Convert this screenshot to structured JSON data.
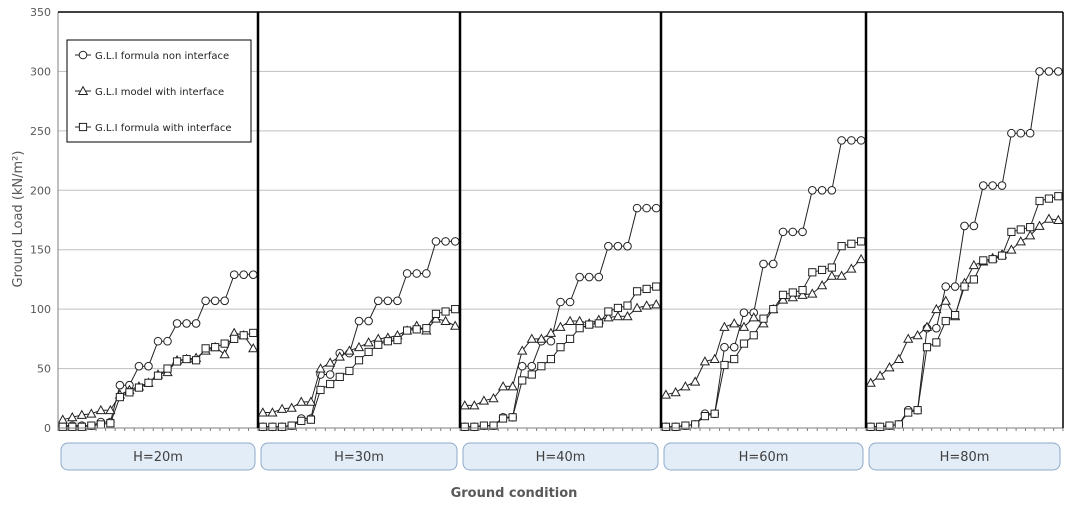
{
  "chart_data": {
    "type": "line",
    "title": "",
    "xlabel": "Ground condition",
    "ylabel": "Ground Load (kN/m²)",
    "ylim": [
      0,
      350
    ],
    "yticks": [
      0,
      50,
      100,
      150,
      200,
      250,
      300,
      350
    ],
    "grid": true,
    "legend": "top-left",
    "panels": [
      "H=20m",
      "H=30m",
      "H=40m",
      "H=60m",
      "H=80m"
    ],
    "series": [
      {
        "name": "G.L.I formula non interface",
        "marker": "circle",
        "values": [
          [
            2,
            2,
            2,
            2,
            5,
            5,
            36,
            36,
            52,
            52,
            73,
            73,
            88,
            88,
            88,
            107,
            107,
            107,
            129,
            129,
            129
          ],
          [
            1,
            1,
            1,
            2,
            8,
            8,
            45,
            45,
            63,
            63,
            90,
            90,
            107,
            107,
            107,
            130,
            130,
            130,
            157,
            157,
            157
          ],
          [
            1,
            1,
            2,
            2,
            9,
            9,
            52,
            52,
            73,
            73,
            106,
            106,
            127,
            127,
            127,
            153,
            153,
            153,
            185,
            185,
            185
          ],
          [
            1,
            1,
            2,
            3,
            12,
            12,
            68,
            68,
            97,
            97,
            138,
            138,
            165,
            165,
            165,
            200,
            200,
            200,
            242,
            242,
            242
          ],
          [
            1,
            1,
            2,
            3,
            15,
            15,
            84,
            84,
            119,
            119,
            170,
            170,
            204,
            204,
            204,
            248,
            248,
            248,
            300,
            300,
            300
          ]
        ]
      },
      {
        "name": "G.L.I model with interface",
        "marker": "triangle",
        "values": [
          [
            7,
            9,
            11,
            12,
            15,
            15,
            28,
            32,
            35,
            38,
            45,
            47,
            57,
            58,
            59,
            65,
            68,
            62,
            80,
            78,
            67
          ],
          [
            13,
            13,
            16,
            17,
            22,
            22,
            50,
            55,
            60,
            65,
            68,
            72,
            75,
            76,
            78,
            82,
            86,
            82,
            92,
            90,
            86
          ],
          [
            19,
            19,
            23,
            25,
            35,
            35,
            65,
            75,
            75,
            80,
            85,
            90,
            90,
            88,
            91,
            93,
            94,
            94,
            101,
            103,
            104
          ],
          [
            28,
            30,
            35,
            39,
            56,
            58,
            85,
            88,
            85,
            93,
            88,
            100,
            108,
            110,
            112,
            113,
            120,
            128,
            128,
            134,
            142
          ],
          [
            38,
            44,
            51,
            58,
            75,
            78,
            85,
            100,
            107,
            94,
            122,
            137,
            140,
            143,
            146,
            150,
            157,
            162,
            170,
            176,
            175
          ]
        ]
      },
      {
        "name": "G.L.I formula with interface",
        "marker": "square",
        "values": [
          [
            1,
            1,
            1,
            2,
            3,
            4,
            26,
            30,
            34,
            38,
            44,
            50,
            56,
            58,
            57,
            67,
            68,
            71,
            75,
            78,
            80
          ],
          [
            1,
            1,
            1,
            2,
            6,
            7,
            32,
            37,
            43,
            48,
            57,
            64,
            70,
            73,
            74,
            82,
            83,
            84,
            96,
            98,
            100
          ],
          [
            1,
            1,
            2,
            2,
            8,
            9,
            40,
            45,
            52,
            58,
            68,
            75,
            84,
            87,
            88,
            98,
            101,
            103,
            115,
            117,
            119
          ],
          [
            1,
            1,
            2,
            3,
            10,
            12,
            53,
            58,
            71,
            78,
            92,
            100,
            112,
            114,
            116,
            131,
            133,
            135,
            153,
            155,
            157
          ],
          [
            1,
            1,
            2,
            3,
            13,
            15,
            68,
            72,
            90,
            95,
            119,
            125,
            141,
            142,
            145,
            165,
            167,
            169,
            191,
            193,
            195
          ]
        ]
      }
    ]
  }
}
